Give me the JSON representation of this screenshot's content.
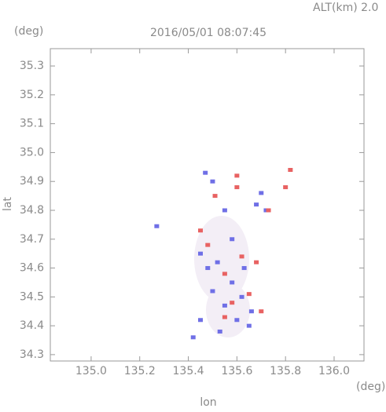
{
  "chart_data": {
    "type": "scatter",
    "title": "2016/05/01 08:07:45",
    "subtitle": "ALT(km) 2.0",
    "x_label": "lon",
    "y_label": "lat",
    "x_unit": "(deg)",
    "y_unit": "(deg)",
    "xlim": [
      134.832,
      136.123
    ],
    "ylim": [
      34.278,
      35.36
    ],
    "xticks": [
      {
        "value": 135,
        "label": "135.0"
      },
      135.2,
      135.4,
      135.6,
      135.8,
      {
        "value": 136,
        "label": "136.0"
      }
    ],
    "yticks": [
      34.3,
      34.4,
      34.5,
      34.6,
      34.7,
      34.8,
      34.9,
      {
        "value": 35,
        "label": "35.0"
      },
      35.1,
      35.2,
      35.3
    ],
    "series": [
      {
        "color": "#6f6fe6",
        "x": [
          135.27,
          135.42,
          135.45,
          135.5,
          135.47,
          135.55,
          135.45,
          135.52,
          135.58,
          135.62,
          135.55,
          135.6,
          135.65,
          135.68,
          135.72,
          135.58,
          135.48,
          135.63,
          135.53,
          135.66,
          135.5,
          135.7
        ],
        "values": [
          34.745,
          34.36,
          34.42,
          34.9,
          34.93,
          34.8,
          34.65,
          34.62,
          34.55,
          34.5,
          34.47,
          34.42,
          34.4,
          34.82,
          34.8,
          34.7,
          34.6,
          34.6,
          34.38,
          34.45,
          34.52,
          34.86
        ]
      },
      {
        "color": "#e86262",
        "x": [
          135.51,
          135.6,
          135.82,
          135.8,
          135.45,
          135.62,
          135.55,
          135.48,
          135.68,
          135.58,
          135.65,
          135.7,
          135.55,
          135.6,
          135.73
        ],
        "values": [
          34.85,
          34.92,
          34.94,
          34.88,
          34.73,
          34.64,
          34.58,
          34.68,
          34.62,
          34.48,
          34.51,
          34.45,
          34.43,
          34.88,
          34.8
        ]
      }
    ]
  }
}
